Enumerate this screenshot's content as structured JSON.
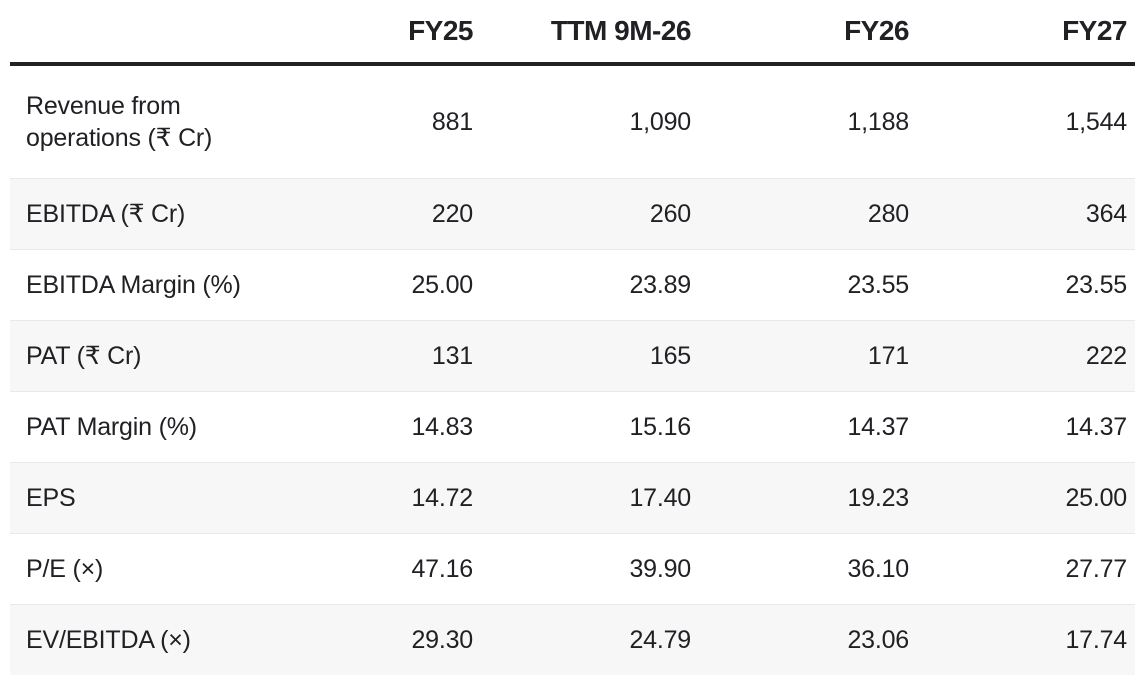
{
  "chart_data": {
    "type": "table",
    "columns": [
      "FY25",
      "TTM 9M-26",
      "FY26",
      "FY27"
    ],
    "rows": [
      {
        "label": "Revenue from operations (₹ Cr)",
        "values": [
          "881",
          "1,090",
          "1,188",
          "1,544"
        ]
      },
      {
        "label": "EBITDA (₹ Cr)",
        "values": [
          "220",
          "260",
          "280",
          "364"
        ]
      },
      {
        "label": "EBITDA Margin (%)",
        "values": [
          "25.00",
          "23.89",
          "23.55",
          "23.55"
        ]
      },
      {
        "label": "PAT (₹ Cr)",
        "values": [
          "131",
          "165",
          "171",
          "222"
        ]
      },
      {
        "label": "PAT Margin (%)",
        "values": [
          "14.83",
          "15.16",
          "14.37",
          "14.37"
        ]
      },
      {
        "label": "EPS",
        "values": [
          "14.72",
          "17.40",
          "19.23",
          "25.00"
        ]
      },
      {
        "label": "P/E (×)",
        "values": [
          "47.16",
          "39.90",
          "36.10",
          "27.77"
        ]
      },
      {
        "label": "EV/EBITDA (×)",
        "values": [
          "29.30",
          "24.79",
          "23.06",
          "17.74"
        ]
      }
    ],
    "layout": {
      "numeric_alignment": "right",
      "striped_rows": "even",
      "grid": "horizontal-dividers",
      "header_rule": "thick-bottom-border"
    }
  },
  "colors": {
    "text": "#202124",
    "header_rule": "#212121",
    "row_stripe": "#f7f7f7",
    "row_divider": "#e9e9e9",
    "background": "#ffffff"
  }
}
